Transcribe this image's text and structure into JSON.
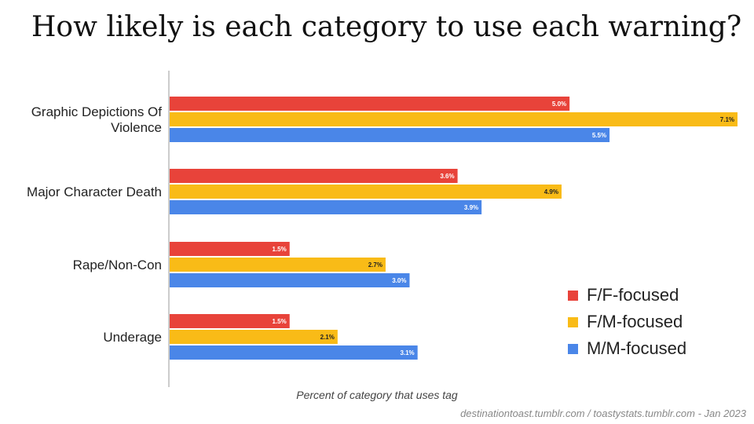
{
  "title": "How likely is each category to use each warning?",
  "footer_credit": "destinationtoast.tumblr.com / toastystats.tumblr.com - Jan 2023",
  "chart_data": {
    "type": "bar",
    "orientation": "horizontal",
    "title": "How likely is each category to use each warning?",
    "xlabel": "Percent of category that uses tag",
    "ylabel": "",
    "xlim": [
      0,
      7.1
    ],
    "grid": false,
    "legend_position": "bottom-right",
    "categories": [
      [
        "Graphic Depictions Of",
        "Violence"
      ],
      [
        "Major Character Death"
      ],
      [
        "Rape/Non-Con"
      ],
      [
        "Underage"
      ]
    ],
    "series": [
      {
        "name": "F/F-focused",
        "color": "#e8433a",
        "values": [
          5.0,
          3.6,
          1.5,
          1.5
        ],
        "labels": [
          "5.0%",
          "3.6%",
          "1.5%",
          "1.5%"
        ],
        "label_color": "#ffffff"
      },
      {
        "name": "F/M-focused",
        "color": "#f9bb17",
        "values": [
          7.1,
          4.9,
          2.7,
          2.1
        ],
        "labels": [
          "7.1%",
          "4.9%",
          "2.7%",
          "2.1%"
        ],
        "label_color": "#222222"
      },
      {
        "name": "M/M-focused",
        "color": "#4a86e8",
        "values": [
          5.5,
          3.9,
          3.0,
          3.1
        ],
        "labels": [
          "5.5%",
          "3.9%",
          "3.0%",
          "3.1%"
        ],
        "label_color": "#ffffff"
      }
    ]
  }
}
